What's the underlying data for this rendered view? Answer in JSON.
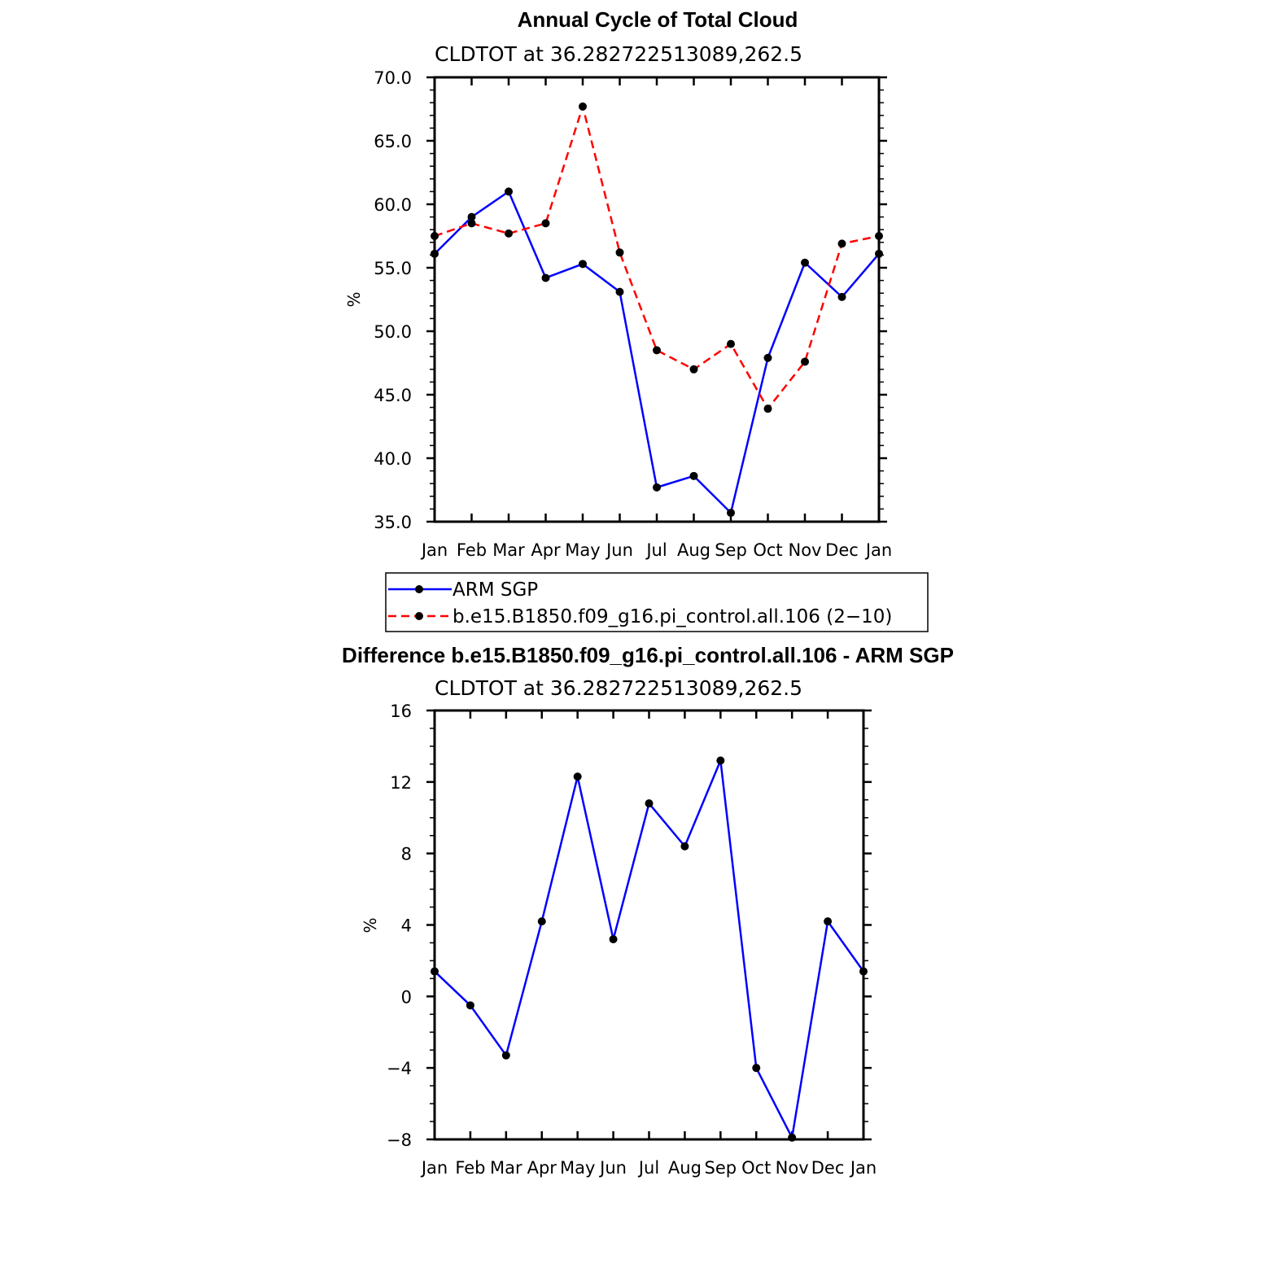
{
  "chart_data": [
    {
      "type": "line",
      "title": "Annual Cycle of Total Cloud",
      "subtitle": "CLDTOT at 36.282722513089,262.5",
      "ylabel": "%",
      "ylim": [
        35.0,
        70.0
      ],
      "yticks": [
        "35.0",
        "40.0",
        "45.0",
        "50.0",
        "55.0",
        "60.0",
        "65.0",
        "70.0"
      ],
      "yticks_values": [
        35,
        40,
        45,
        50,
        55,
        60,
        65,
        70
      ],
      "categories": [
        "Jan",
        "Feb",
        "Mar",
        "Apr",
        "May",
        "Jun",
        "Jul",
        "Aug",
        "Sep",
        "Oct",
        "Nov",
        "Dec",
        "Jan"
      ],
      "grid": false,
      "series": [
        {
          "name": "ARM SGP",
          "color": "#0000ff",
          "dash": "solid",
          "values": [
            56.1,
            59.0,
            61.0,
            54.2,
            55.3,
            53.1,
            37.7,
            38.6,
            35.7,
            47.9,
            55.4,
            52.7,
            56.1
          ]
        },
        {
          "name": "b.e15.B1850.f09_g16.pi_control.all.106 (2−10)",
          "color": "#ff0000",
          "dash": "dashed",
          "values": [
            57.5,
            58.5,
            57.7,
            58.5,
            67.7,
            56.2,
            48.5,
            47.0,
            49.0,
            43.9,
            47.6,
            56.9,
            57.5
          ]
        }
      ],
      "legend": "below"
    },
    {
      "type": "line",
      "title": "Difference b.e15.B1850.f09_g16.pi_control.all.106 - ARM SGP",
      "subtitle": "CLDTOT at 36.282722513089,262.5",
      "ylabel": "%",
      "ylim": [
        -8,
        16
      ],
      "yticks": [
        "−8",
        "−4",
        "0",
        "4",
        "8",
        "12",
        "16"
      ],
      "yticks_values": [
        -8,
        -4,
        0,
        4,
        8,
        12,
        16
      ],
      "categories": [
        "Jan",
        "Feb",
        "Mar",
        "Apr",
        "May",
        "Jun",
        "Jul",
        "Aug",
        "Sep",
        "Oct",
        "Nov",
        "Dec",
        "Jan"
      ],
      "grid": false,
      "series": [
        {
          "color": "#0000ff",
          "dash": "solid",
          "values": [
            1.4,
            -0.5,
            -3.3,
            4.2,
            12.3,
            3.2,
            10.8,
            8.4,
            13.2,
            -4.0,
            -7.9,
            4.2,
            1.4
          ]
        }
      ]
    }
  ]
}
